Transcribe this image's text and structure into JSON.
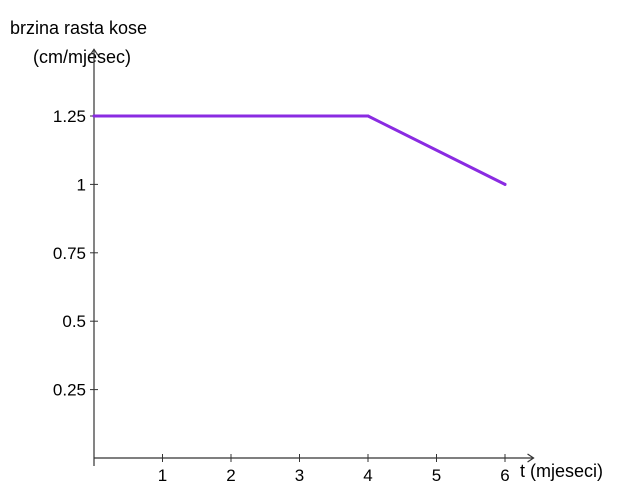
{
  "chart_data": {
    "type": "line",
    "title": "",
    "ylabel_line1": "brzina rasta kose",
    "ylabel_line2": "(cm/mjesec)",
    "xlabel": "t (mjeseci)",
    "xlim": [
      0,
      6.3
    ],
    "ylim": [
      0,
      1.45
    ],
    "x_ticks": [
      1,
      2,
      3,
      4,
      5,
      6
    ],
    "x_tick_labels": [
      "1",
      "2",
      "3",
      "4",
      "5",
      "6"
    ],
    "y_ticks": [
      0.25,
      0.5,
      0.75,
      1,
      1.25
    ],
    "y_tick_labels": [
      "0.25",
      "0.5",
      "0.75",
      "1",
      "1.25"
    ],
    "grid": false,
    "series": [
      {
        "color": "#8a2be2",
        "x": [
          0,
          4,
          6
        ],
        "y": [
          1.25,
          1.25,
          1
        ]
      }
    ]
  }
}
